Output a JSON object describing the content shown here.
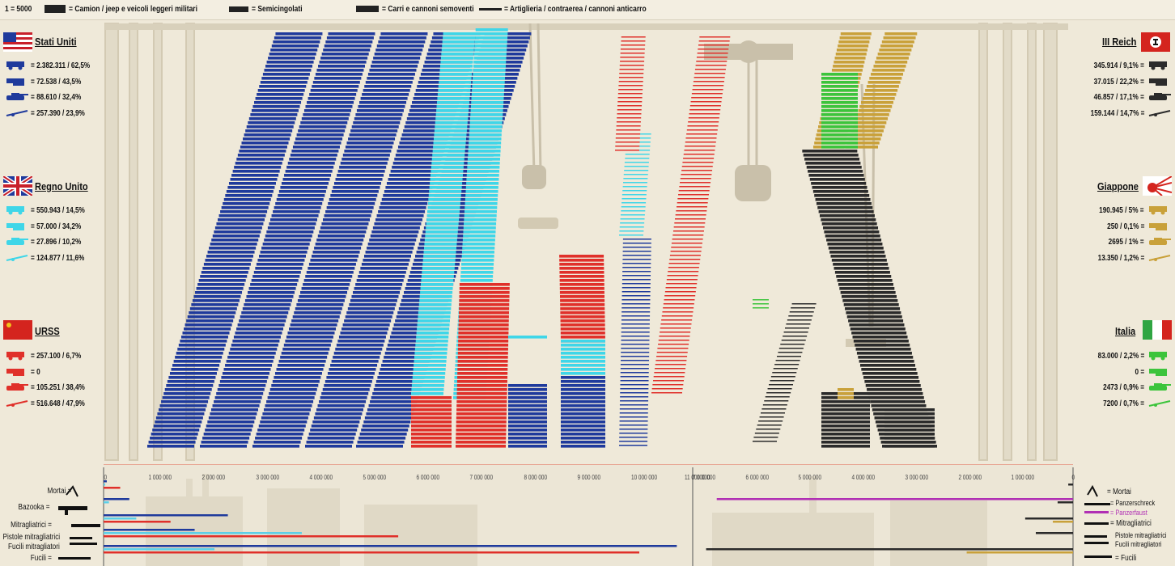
{
  "legend": {
    "unit": "1 = 5000",
    "trucks": "= Camion / jeep e veicoli leggeri militari",
    "halftracks": "= Semicingolati",
    "tanks": "= Carri e cannoni semoventi",
    "artillery": "= Artiglieria / contraerea / cannoni anticarro"
  },
  "countries": {
    "usa": {
      "name": "Stati Uniti",
      "stats": [
        "= 2.382.311 / 62,5%",
        "= 72.538 / 43,5%",
        "= 88.610 / 32,4%",
        "= 257.390 / 23,9%"
      ],
      "color": "#1f3a9c"
    },
    "uk": {
      "name": "Regno Unito",
      "stats": [
        "= 550.943 / 14,5%",
        "= 57.000 / 34,2%",
        "= 27.896 / 10,2%",
        "= 124.877 / 11,6%"
      ],
      "color": "#3fd6e8"
    },
    "ussr": {
      "name": "URSS",
      "stats": [
        "= 257.100 / 6,7%",
        "= 0",
        "= 105.251 / 38,4%",
        "= 516.648 / 47,9%"
      ],
      "color": "#e0302a"
    },
    "germany": {
      "name": "III Reich",
      "stats": [
        "345.914 / 9,1% =",
        "37.015 / 22,2% =",
        "46.857 / 17,1% =",
        "159.144 / 14,7% ="
      ],
      "color": "#2b2b2b"
    },
    "japan": {
      "name": "Giappone",
      "stats": [
        "190.945 / 5% =",
        "250 / 0,1% =",
        "2695 / 1% =",
        "13.350 / 1,2% ="
      ],
      "color": "#c9a13a"
    },
    "italy": {
      "name": "Italia",
      "stats": [
        "83.000 / 2,2% =",
        "0 =",
        "2473 / 0,9% =",
        "7200 / 0,7% ="
      ],
      "color": "#3cc43c"
    }
  },
  "infantry": {
    "left_labels": [
      "Mortai =",
      "Bazooka =",
      "Mitragliatrici =",
      "Pistole mitragliatrici",
      "Fucili mitragliatori",
      "Fucili ="
    ],
    "right_labels": [
      "= Mortai",
      "= Panzerschreck",
      "= Panzerfaust",
      "= Mitragliatrici",
      "Pistole mitragliatrici",
      "Fucili mitragliatori",
      "= Fucili"
    ]
  },
  "chart_data": {
    "type": "bar",
    "axis_left_ticks": [
      "0",
      "1 000 000",
      "2 000 000",
      "3 000 000",
      "4 000 000",
      "5 000 000",
      "6 000 000",
      "7 000 000",
      "8 000 000",
      "9 000 000",
      "10 000 000",
      "11 000 000"
    ],
    "axis_right_ticks": [
      "7 000 000",
      "6 000 000",
      "5 000 000",
      "4 000 000",
      "3 000 000",
      "2 000 000",
      "1 000 000",
      "0"
    ],
    "allies_bars": [
      {
        "row": 0,
        "country": "usa",
        "value": 60000
      },
      {
        "row": 0,
        "country": "uk",
        "value": 30000
      },
      {
        "row": 0,
        "country": "ussr",
        "value": 310000
      },
      {
        "row": 1,
        "country": "usa",
        "value": 480000
      },
      {
        "row": 1,
        "country": "uk",
        "value": 100000
      },
      {
        "row": 2,
        "country": "usa",
        "value": 2320000
      },
      {
        "row": 2,
        "country": "uk",
        "value": 610000
      },
      {
        "row": 2,
        "country": "ussr",
        "value": 1250000
      },
      {
        "row": 3,
        "country": "usa",
        "value": 1700000
      },
      {
        "row": 3,
        "country": "uk",
        "value": 3700000
      },
      {
        "row": 3,
        "country": "ussr",
        "value": 5500000
      },
      {
        "row": 4,
        "country": "usa",
        "value": 10700000
      },
      {
        "row": 4,
        "country": "uk",
        "value": 2070000
      },
      {
        "row": 4,
        "country": "ussr",
        "value": 10000000
      }
    ],
    "axis_series_bars": [
      {
        "row": 0,
        "country": "germany",
        "value": 90000
      },
      {
        "row": 1,
        "country": "germany",
        "value": 290000
      },
      {
        "row": 1,
        "country": "panzerfaust",
        "value": 6700000
      },
      {
        "row": 2,
        "country": "germany",
        "value": 900000
      },
      {
        "row": 2,
        "country": "japan",
        "value": 380000
      },
      {
        "row": 3,
        "country": "germany",
        "value": 700000
      },
      {
        "row": 4,
        "country": "germany",
        "value": 6900000
      },
      {
        "row": 4,
        "country": "japan",
        "value": 2000000
      }
    ]
  }
}
